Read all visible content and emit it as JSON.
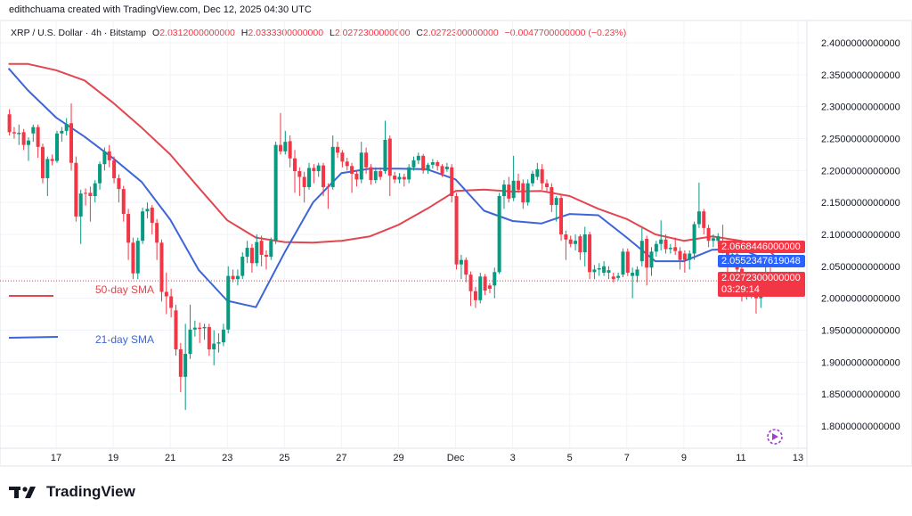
{
  "header": {
    "credit": "edithchuama created with TradingView.com, Dec 12, 2025 04:30 UTC",
    "symbol": "XRP / U.S. Dollar · 4h · Bitstamp",
    "open_label": "O",
    "open": "2.0312000000000",
    "high_label": "H",
    "high": "2.0333300000000",
    "low_label": "L",
    "low": "2.0272300000000",
    "close_label": "C",
    "close": "2.0272300000000",
    "change": "−0.0047700000000 (−0.23%)"
  },
  "annotations": {
    "sma50_label": "50-day SMA",
    "sma21_label": "21-day SMA"
  },
  "price_tags": {
    "sma50": "2.0668446000000",
    "sma21": "2.0552347619048",
    "last_price": "2.0272300000000",
    "countdown": "03:29:14"
  },
  "branding": {
    "name": "TradingView"
  },
  "colors": {
    "up": "#089981",
    "down": "#f23645",
    "sma50": "#e2464f",
    "sma21": "#3d65d8",
    "grid": "#f0f3fa",
    "replay_icon": "#9c3fd6"
  },
  "chart_data": {
    "type": "candlestick",
    "symbol": "XRP / U.S. Dollar",
    "interval": "4h",
    "ylim": [
      1.77,
      2.42
    ],
    "grid": true,
    "price_ticks": [
      {
        "v": 2.4,
        "label": "2.4000000000000"
      },
      {
        "v": 2.35,
        "label": "2.3500000000000"
      },
      {
        "v": 2.3,
        "label": "2.3000000000000"
      },
      {
        "v": 2.25,
        "label": "2.2500000000000"
      },
      {
        "v": 2.2,
        "label": "2.2000000000000"
      },
      {
        "v": 2.15,
        "label": "2.1500000000000"
      },
      {
        "v": 2.1,
        "label": "2.1000000000000"
      },
      {
        "v": 2.05,
        "label": "2.0500000000000"
      },
      {
        "v": 2.0,
        "label": "2.0000000000000"
      },
      {
        "v": 1.95,
        "label": "1.9500000000000"
      },
      {
        "v": 1.9,
        "label": "1.9000000000000"
      },
      {
        "v": 1.85,
        "label": "1.8500000000000"
      },
      {
        "v": 1.8,
        "label": "1.8000000000000"
      }
    ],
    "date_ticks": [
      {
        "date": "2025-11-17",
        "label": "17"
      },
      {
        "date": "2025-11-19",
        "label": "19"
      },
      {
        "date": "2025-11-21",
        "label": "21"
      },
      {
        "date": "2025-11-23",
        "label": "23"
      },
      {
        "date": "2025-11-25",
        "label": "25"
      },
      {
        "date": "2025-11-27",
        "label": "27"
      },
      {
        "date": "2025-11-29",
        "label": "29"
      },
      {
        "date": "2025-12-01",
        "label": "Dec"
      },
      {
        "date": "2025-12-03",
        "label": "3"
      },
      {
        "date": "2025-12-05",
        "label": "5"
      },
      {
        "date": "2025-12-07",
        "label": "7"
      },
      {
        "date": "2025-12-09",
        "label": "9"
      },
      {
        "date": "2025-12-11",
        "label": "11"
      },
      {
        "date": "2025-12-13",
        "label": "13"
      }
    ],
    "last_price": 2.02723,
    "candles_ohlc": [
      [
        2.288,
        2.296,
        2.255,
        2.26
      ],
      [
        2.26,
        2.268,
        2.25,
        2.258
      ],
      [
        2.257,
        2.272,
        2.24,
        2.259
      ],
      [
        2.26,
        2.265,
        2.232,
        2.24
      ],
      [
        2.24,
        2.252,
        2.215,
        2.247
      ],
      [
        2.258,
        2.272,
        2.245,
        2.268
      ],
      [
        2.268,
        2.272,
        2.22,
        2.237
      ],
      [
        2.237,
        2.242,
        2.18,
        2.188
      ],
      [
        2.188,
        2.222,
        2.16,
        2.218
      ],
      [
        2.218,
        2.225,
        2.208,
        2.215
      ],
      [
        2.215,
        2.262,
        2.212,
        2.258
      ],
      [
        2.258,
        2.268,
        2.245,
        2.262
      ],
      [
        2.262,
        2.282,
        2.255,
        2.273
      ],
      [
        2.274,
        2.305,
        2.2,
        2.212
      ],
      [
        2.212,
        2.222,
        2.12,
        2.128
      ],
      [
        2.128,
        2.17,
        2.085,
        2.164
      ],
      [
        2.165,
        2.172,
        2.145,
        2.164
      ],
      [
        2.165,
        2.175,
        2.12,
        2.16
      ],
      [
        2.16,
        2.185,
        2.15,
        2.18
      ],
      [
        2.18,
        2.214,
        2.17,
        2.21
      ],
      [
        2.21,
        2.236,
        2.2,
        2.23
      ],
      [
        2.23,
        2.24,
        2.205,
        2.216
      ],
      [
        2.216,
        2.222,
        2.18,
        2.188
      ],
      [
        2.188,
        2.194,
        2.15,
        2.171
      ],
      [
        2.171,
        2.176,
        2.12,
        2.132
      ],
      [
        2.132,
        2.14,
        2.06,
        2.087
      ],
      [
        2.087,
        2.095,
        2.03,
        2.039
      ],
      [
        2.039,
        2.095,
        2.03,
        2.09
      ],
      [
        2.09,
        2.142,
        2.085,
        2.136
      ],
      [
        2.136,
        2.15,
        2.125,
        2.14
      ],
      [
        2.142,
        2.146,
        2.1,
        2.118
      ],
      [
        2.118,
        2.124,
        2.06,
        2.087
      ],
      [
        2.087,
        2.092,
        1.995,
        2.01
      ],
      [
        2.01,
        2.04,
        1.975,
        2.003
      ],
      [
        2.003,
        2.015,
        1.97,
        1.985
      ],
      [
        1.981,
        1.99,
        1.91,
        1.92
      ],
      [
        1.92,
        1.93,
        1.853,
        1.877
      ],
      [
        1.877,
        1.96,
        1.825,
        1.913
      ],
      [
        1.913,
        1.99,
        1.905,
        1.951
      ],
      [
        1.951,
        1.965,
        1.94,
        1.954
      ],
      [
        1.954,
        1.962,
        1.93,
        1.952
      ],
      [
        1.953,
        1.96,
        1.935,
        1.955
      ],
      [
        1.955,
        1.96,
        1.91,
        1.92
      ],
      [
        1.92,
        1.95,
        1.895,
        1.929
      ],
      [
        1.929,
        1.945,
        1.915,
        1.931
      ],
      [
        1.931,
        1.96,
        1.925,
        1.951
      ],
      [
        1.951,
        2.05,
        1.945,
        2.035
      ],
      [
        2.035,
        2.045,
        2.025,
        2.03
      ],
      [
        2.03,
        2.045,
        2.02,
        2.035
      ],
      [
        2.035,
        2.072,
        2.03,
        2.065
      ],
      [
        2.065,
        2.09,
        2.055,
        2.079
      ],
      [
        2.079,
        2.085,
        2.04,
        2.055
      ],
      [
        2.055,
        2.1,
        2.05,
        2.088
      ],
      [
        2.09,
        2.098,
        2.05,
        2.068
      ],
      [
        2.068,
        2.075,
        2.045,
        2.065
      ],
      [
        2.065,
        2.095,
        2.06,
        2.09
      ],
      [
        2.09,
        2.245,
        2.085,
        2.24
      ],
      [
        2.24,
        2.29,
        2.225,
        2.23
      ],
      [
        2.23,
        2.262,
        2.225,
        2.245
      ],
      [
        2.246,
        2.255,
        2.205,
        2.219
      ],
      [
        2.219,
        2.232,
        2.165,
        2.199
      ],
      [
        2.199,
        2.205,
        2.16,
        2.19
      ],
      [
        2.19,
        2.198,
        2.15,
        2.174
      ],
      [
        2.174,
        2.212,
        2.17,
        2.204
      ],
      [
        2.204,
        2.21,
        2.18,
        2.199
      ],
      [
        2.199,
        2.212,
        2.19,
        2.208
      ],
      [
        2.208,
        2.212,
        2.16,
        2.174
      ],
      [
        2.175,
        2.18,
        2.14,
        2.174
      ],
      [
        2.174,
        2.255,
        2.17,
        2.237
      ],
      [
        2.237,
        2.245,
        2.22,
        2.228
      ],
      [
        2.228,
        2.232,
        2.205,
        2.214
      ],
      [
        2.214,
        2.22,
        2.2,
        2.207
      ],
      [
        2.207,
        2.212,
        2.165,
        2.195
      ],
      [
        2.195,
        2.2,
        2.175,
        2.186
      ],
      [
        2.186,
        2.245,
        2.18,
        2.228
      ],
      [
        2.228,
        2.236,
        2.195,
        2.205
      ],
      [
        2.205,
        2.21,
        2.178,
        2.185
      ],
      [
        2.185,
        2.205,
        2.18,
        2.199
      ],
      [
        2.199,
        2.205,
        2.185,
        2.19
      ],
      [
        2.199,
        2.278,
        2.195,
        2.248
      ],
      [
        2.25,
        2.255,
        2.16,
        2.192
      ],
      [
        2.192,
        2.198,
        2.18,
        2.186
      ],
      [
        2.186,
        2.196,
        2.18,
        2.19
      ],
      [
        2.19,
        2.195,
        2.175,
        2.186
      ],
      [
        2.186,
        2.21,
        2.18,
        2.205
      ],
      [
        2.205,
        2.222,
        2.2,
        2.216
      ],
      [
        2.216,
        2.228,
        2.21,
        2.223
      ],
      [
        2.223,
        2.226,
        2.195,
        2.2
      ],
      [
        2.2,
        2.212,
        2.195,
        2.209
      ],
      [
        2.209,
        2.218,
        2.203,
        2.213
      ],
      [
        2.213,
        2.216,
        2.2,
        2.207
      ],
      [
        2.207,
        2.21,
        2.19,
        2.195
      ],
      [
        2.202,
        2.212,
        2.198,
        2.206
      ],
      [
        2.205,
        2.21,
        2.15,
        2.16
      ],
      [
        2.16,
        2.165,
        2.045,
        2.053
      ],
      [
        2.053,
        2.068,
        2.03,
        2.06
      ],
      [
        2.06,
        2.064,
        2.025,
        2.037
      ],
      [
        2.037,
        2.042,
        1.988,
        2.011
      ],
      [
        2.011,
        2.018,
        1.985,
        1.997
      ],
      [
        1.997,
        2.04,
        1.992,
        2.034
      ],
      [
        2.034,
        2.038,
        2.005,
        2.012
      ],
      [
        2.02,
        2.024,
        2.008,
        2.015
      ],
      [
        2.02,
        2.048,
        2.0,
        2.041
      ],
      [
        2.041,
        2.165,
        2.038,
        2.16
      ],
      [
        2.16,
        2.185,
        2.14,
        2.178
      ],
      [
        2.178,
        2.19,
        2.15,
        2.156
      ],
      [
        2.157,
        2.223,
        2.152,
        2.184
      ],
      [
        2.184,
        2.195,
        2.165,
        2.17
      ],
      [
        2.18,
        2.186,
        2.14,
        2.15
      ],
      [
        2.15,
        2.186,
        2.145,
        2.18
      ],
      [
        2.18,
        2.2,
        2.175,
        2.195
      ],
      [
        2.19,
        2.212,
        2.185,
        2.202
      ],
      [
        2.202,
        2.21,
        2.17,
        2.18
      ],
      [
        2.18,
        2.186,
        2.165,
        2.174
      ],
      [
        2.174,
        2.18,
        2.135,
        2.146
      ],
      [
        2.146,
        2.16,
        2.12,
        2.157
      ],
      [
        2.157,
        2.162,
        2.09,
        2.1
      ],
      [
        2.1,
        2.106,
        2.06,
        2.092
      ],
      [
        2.092,
        2.098,
        2.08,
        2.085
      ],
      [
        2.085,
        2.1,
        2.075,
        2.09
      ],
      [
        2.097,
        2.1,
        2.06,
        2.072
      ],
      [
        2.072,
        2.112,
        2.05,
        2.1
      ],
      [
        2.1,
        2.104,
        2.03,
        2.041
      ],
      [
        2.041,
        2.052,
        2.03,
        2.045
      ],
      [
        2.045,
        2.055,
        2.035,
        2.047
      ],
      [
        2.04,
        2.058,
        2.035,
        2.05
      ],
      [
        2.04,
        2.05,
        2.03,
        2.044
      ],
      [
        2.034,
        2.04,
        2.025,
        2.03
      ],
      [
        2.032,
        2.04,
        2.028,
        2.035
      ],
      [
        2.037,
        2.078,
        2.033,
        2.073
      ],
      [
        2.073,
        2.078,
        2.035,
        2.04
      ],
      [
        2.035,
        2.048,
        2.0,
        2.04
      ],
      [
        2.035,
        2.05,
        2.025,
        2.045
      ],
      [
        2.058,
        2.11,
        2.05,
        2.09
      ],
      [
        2.093,
        2.098,
        2.02,
        2.048
      ],
      [
        2.048,
        2.08,
        2.035,
        2.073
      ],
      [
        2.073,
        2.09,
        2.065,
        2.085
      ],
      [
        2.085,
        2.122,
        2.075,
        2.092
      ],
      [
        2.092,
        2.1,
        2.07,
        2.077
      ],
      [
        2.077,
        2.085,
        2.07,
        2.079
      ],
      [
        2.08,
        2.095,
        2.068,
        2.074
      ],
      [
        2.074,
        2.08,
        2.045,
        2.06
      ],
      [
        2.07,
        2.075,
        2.04,
        2.06
      ],
      [
        2.06,
        2.075,
        2.045,
        2.07
      ],
      [
        2.07,
        2.12,
        2.06,
        2.116
      ],
      [
        2.116,
        2.181,
        2.11,
        2.136
      ],
      [
        2.136,
        2.14,
        2.1,
        2.11
      ],
      [
        2.11,
        2.115,
        2.08,
        2.09
      ],
      [
        2.09,
        2.1,
        2.08,
        2.094
      ],
      [
        2.09,
        2.102,
        2.085,
        2.097
      ],
      [
        2.083,
        2.115,
        2.07,
        2.074
      ],
      [
        2.074,
        2.08,
        2.03,
        2.06
      ],
      [
        2.062,
        2.075,
        2.055,
        2.069
      ],
      [
        2.069,
        2.075,
        2.04,
        2.045
      ],
      [
        2.046,
        2.05,
        1.995,
        2.004
      ],
      [
        2.004,
        2.02,
        1.998,
        2.01
      ],
      [
        2.01,
        2.025,
        2.0,
        2.012
      ],
      [
        2.012,
        2.02,
        1.976,
        2.0
      ],
      [
        2.0,
        2.025,
        1.985,
        2.017
      ],
      [
        2.017,
        2.055,
        2.012,
        2.036
      ],
      [
        2.036,
        2.048,
        2.02,
        2.033
      ],
      [
        2.0312,
        2.03333,
        2.02723,
        2.02723
      ]
    ],
    "series": [
      {
        "name": "50-day SMA",
        "points": [
          [
            "2025-11-15 08:00",
            2.367
          ],
          [
            "2025-11-16",
            2.367
          ],
          [
            "2025-11-17",
            2.357
          ],
          [
            "2025-11-18",
            2.341
          ],
          [
            "2025-11-19",
            2.306
          ],
          [
            "2025-11-20",
            2.267
          ],
          [
            "2025-11-21",
            2.225
          ],
          [
            "2025-11-22",
            2.173
          ],
          [
            "2025-11-23",
            2.122
          ],
          [
            "2025-11-24",
            2.095
          ],
          [
            "2025-11-25",
            2.088
          ],
          [
            "2025-11-26",
            2.087
          ],
          [
            "2025-11-27",
            2.09
          ],
          [
            "2025-11-28",
            2.097
          ],
          [
            "2025-11-29",
            2.115
          ],
          [
            "2025-11-30",
            2.14
          ],
          [
            "2025-12-01",
            2.168
          ],
          [
            "2025-12-02",
            2.17
          ],
          [
            "2025-12-03",
            2.167
          ],
          [
            "2025-12-04",
            2.168
          ],
          [
            "2025-12-05",
            2.16
          ],
          [
            "2025-12-06",
            2.14
          ],
          [
            "2025-12-07",
            2.124
          ],
          [
            "2025-12-08",
            2.1
          ],
          [
            "2025-12-09",
            2.09
          ],
          [
            "2025-12-10",
            2.097
          ],
          [
            "2025-12-11",
            2.09
          ],
          [
            "2025-12-12",
            2.074
          ],
          [
            "2025-12-12 04:00",
            2.0668446
          ]
        ]
      },
      {
        "name": "21-day SMA",
        "points": [
          [
            "2025-11-15 08:00",
            2.36
          ],
          [
            "2025-11-16",
            2.326
          ],
          [
            "2025-11-17",
            2.283
          ],
          [
            "2025-11-18",
            2.253
          ],
          [
            "2025-11-19",
            2.219
          ],
          [
            "2025-11-20",
            2.182
          ],
          [
            "2025-11-21",
            2.123
          ],
          [
            "2025-11-22",
            2.044
          ],
          [
            "2025-11-23",
            1.996
          ],
          [
            "2025-11-24",
            1.986
          ],
          [
            "2025-11-25",
            2.071
          ],
          [
            "2025-11-26",
            2.15
          ],
          [
            "2025-11-27",
            2.196
          ],
          [
            "2025-11-28",
            2.203
          ],
          [
            "2025-11-29",
            2.203
          ],
          [
            "2025-11-30",
            2.202
          ],
          [
            "2025-12-01",
            2.186
          ],
          [
            "2025-12-02",
            2.137
          ],
          [
            "2025-12-03",
            2.121
          ],
          [
            "2025-12-04",
            2.117
          ],
          [
            "2025-12-05",
            2.132
          ],
          [
            "2025-12-06",
            2.13
          ],
          [
            "2025-12-07",
            2.095
          ],
          [
            "2025-12-08",
            2.058
          ],
          [
            "2025-12-09",
            2.058
          ],
          [
            "2025-12-10",
            2.076
          ],
          [
            "2025-12-11",
            2.077
          ],
          [
            "2025-12-12",
            2.058
          ],
          [
            "2025-12-12 04:00",
            2.0552347619048
          ]
        ]
      }
    ]
  }
}
